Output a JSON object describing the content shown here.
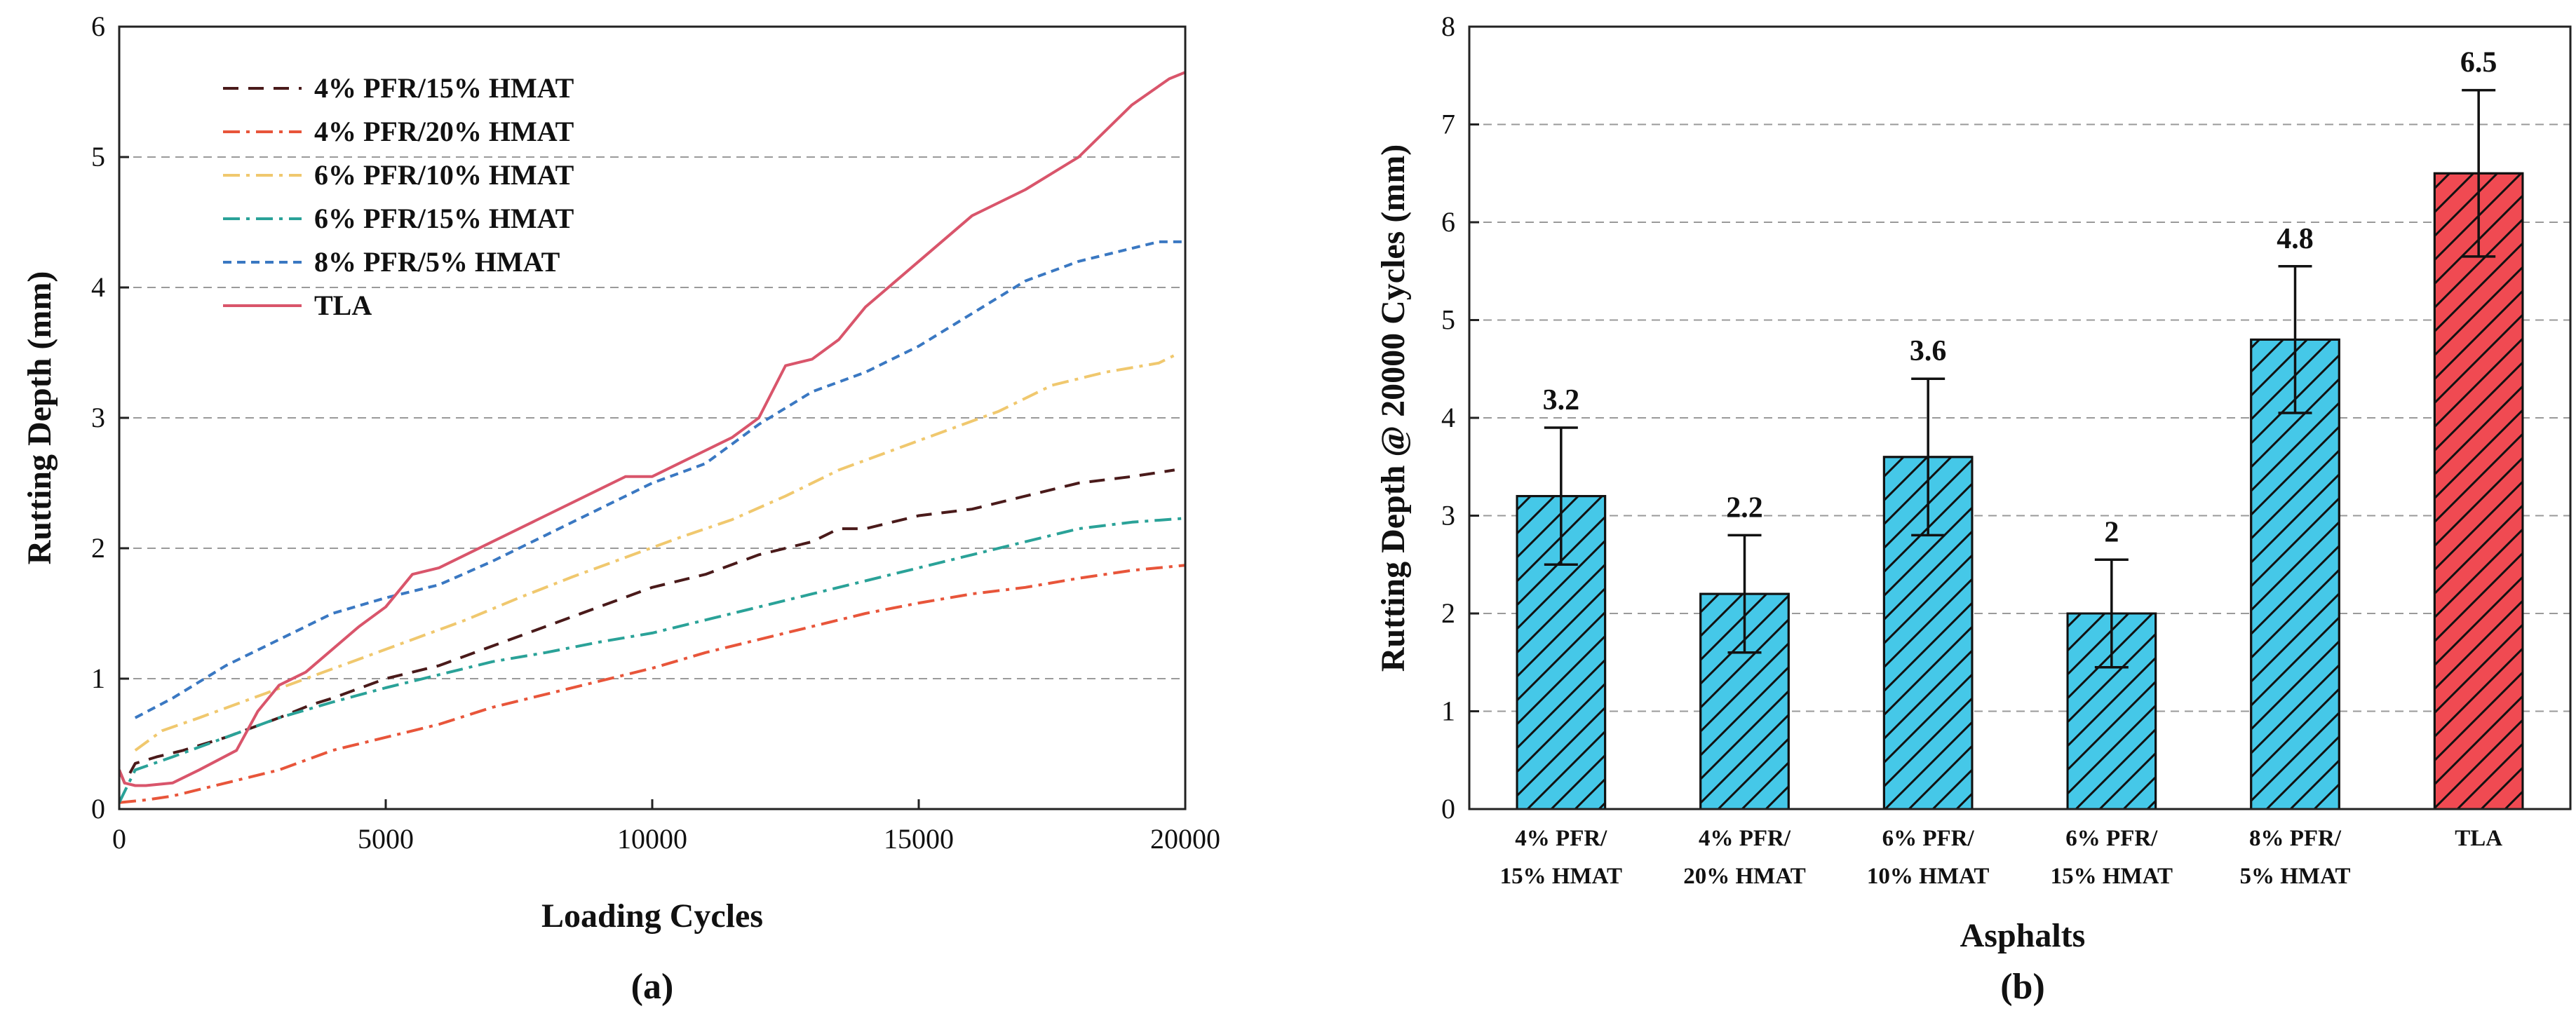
{
  "chart_data": [
    {
      "type": "line",
      "panel_label": "(a)",
      "xlabel": "Loading Cycles",
      "ylabel": "Rutting Depth (mm)",
      "xlim": [
        0,
        20000
      ],
      "ylim": [
        0,
        6
      ],
      "xticks": [
        0,
        5000,
        10000,
        15000,
        20000
      ],
      "yticks": [
        0,
        1,
        2,
        3,
        4,
        5,
        6
      ],
      "grid": "horizontal dashed",
      "legend_position": "top-left",
      "series": [
        {
          "name": "4% PFR/15% HMAT",
          "color": "#4a1a1a",
          "dash": "long",
          "x": [
            0,
            100,
            300,
            700,
            1200,
            2000,
            3000,
            3600,
            4000,
            5000,
            6000,
            7000,
            8000,
            9000,
            10000,
            11000,
            12000,
            13000,
            13500,
            14000,
            15000,
            16000,
            17000,
            18000,
            19000,
            19800
          ],
          "y": [
            0.3,
            0.2,
            0.35,
            0.4,
            0.45,
            0.55,
            0.7,
            0.8,
            0.85,
            1.0,
            1.1,
            1.25,
            1.4,
            1.55,
            1.7,
            1.8,
            1.95,
            2.05,
            2.15,
            2.15,
            2.25,
            2.3,
            2.4,
            2.5,
            2.55,
            2.6
          ]
        },
        {
          "name": "4% PFR/20% HMAT",
          "color": "#e8553a",
          "dash": "dashdot",
          "x": [
            0,
            500,
            1000,
            1500,
            2000,
            3000,
            4000,
            5000,
            6000,
            7000,
            8000,
            9000,
            10000,
            11000,
            12000,
            13000,
            14000,
            15000,
            16000,
            17000,
            18000,
            19000,
            20000
          ],
          "y": [
            0.05,
            0.07,
            0.1,
            0.15,
            0.2,
            0.3,
            0.45,
            0.55,
            0.65,
            0.78,
            0.88,
            0.98,
            1.08,
            1.2,
            1.3,
            1.4,
            1.5,
            1.58,
            1.65,
            1.7,
            1.77,
            1.83,
            1.87
          ]
        },
        {
          "name": "6% PFR/10% HMAT",
          "color": "#f0c86e",
          "dash": "dashdot",
          "x": [
            300,
            800,
            1500,
            2500,
            3500,
            4500,
            5500,
            6500,
            7500,
            8500,
            9500,
            10500,
            11500,
            12500,
            13500,
            14500,
            15500,
            16500,
            17500,
            18500,
            19500,
            19800
          ],
          "y": [
            0.45,
            0.6,
            0.7,
            0.85,
            1.0,
            1.15,
            1.3,
            1.45,
            1.62,
            1.78,
            1.93,
            2.08,
            2.22,
            2.4,
            2.6,
            2.75,
            2.9,
            3.05,
            3.25,
            3.35,
            3.42,
            3.48
          ]
        },
        {
          "name": "6% PFR/15% HMAT",
          "color": "#2aa298",
          "dash": "dashdot",
          "x": [
            0,
            300,
            1000,
            2000,
            3000,
            4000,
            5000,
            6000,
            7000,
            8000,
            9000,
            10000,
            11000,
            12000,
            13000,
            14000,
            15000,
            16000,
            17000,
            18000,
            19000,
            20000
          ],
          "y": [
            0.05,
            0.3,
            0.4,
            0.55,
            0.7,
            0.82,
            0.93,
            1.03,
            1.13,
            1.2,
            1.28,
            1.35,
            1.45,
            1.55,
            1.65,
            1.75,
            1.85,
            1.95,
            2.05,
            2.15,
            2.2,
            2.23
          ]
        },
        {
          "name": "8% PFR/5% HMAT",
          "color": "#3a78c2",
          "dash": "short",
          "x": [
            300,
            1000,
            2000,
            3000,
            4000,
            5000,
            6000,
            7000,
            8000,
            9000,
            10000,
            11000,
            12000,
            13000,
            14000,
            15000,
            16000,
            17000,
            18000,
            19000,
            19500,
            20000
          ],
          "y": [
            0.7,
            0.85,
            1.1,
            1.3,
            1.5,
            1.62,
            1.72,
            1.9,
            2.1,
            2.3,
            2.5,
            2.65,
            2.95,
            3.2,
            3.35,
            3.55,
            3.8,
            4.05,
            4.2,
            4.3,
            4.35,
            4.35
          ]
        },
        {
          "name": "TLA",
          "color": "#d9556b",
          "dash": "solid",
          "x": [
            0,
            100,
            300,
            500,
            1000,
            1500,
            2200,
            2600,
            3000,
            3500,
            4500,
            5000,
            5500,
            6000,
            7000,
            8000,
            9000,
            9500,
            10000,
            10500,
            11000,
            11500,
            12000,
            12500,
            13000,
            13500,
            14000,
            15000,
            16000,
            17000,
            18000,
            19000,
            19700,
            20000
          ],
          "y": [
            0.3,
            0.2,
            0.18,
            0.18,
            0.2,
            0.3,
            0.45,
            0.75,
            0.95,
            1.05,
            1.4,
            1.55,
            1.8,
            1.85,
            2.05,
            2.25,
            2.45,
            2.55,
            2.55,
            2.65,
            2.75,
            2.85,
            3.0,
            3.4,
            3.45,
            3.6,
            3.85,
            4.2,
            4.55,
            4.75,
            5.0,
            5.4,
            5.6,
            5.65
          ]
        }
      ]
    },
    {
      "type": "bar",
      "panel_label": "(b)",
      "xlabel": "Asphalts",
      "ylabel": "Rutting Depth @ 20000 Cycles (mm)",
      "ylim": [
        0,
        8
      ],
      "yticks": [
        0,
        1,
        2,
        3,
        4,
        5,
        6,
        7,
        8
      ],
      "grid": "horizontal dashed",
      "categories": [
        [
          "4% PFR/",
          "15% HMAT"
        ],
        [
          "4% PFR/",
          "20% HMAT"
        ],
        [
          "6% PFR/",
          "10% HMAT"
        ],
        [
          "6% PFR/",
          "15% HMAT"
        ],
        [
          "8% PFR/",
          "5% HMAT"
        ],
        [
          "TLA"
        ]
      ],
      "values": [
        3.2,
        2.2,
        3.6,
        2.0,
        4.8,
        6.5
      ],
      "value_labels": [
        "3.2",
        "2.2",
        "3.6",
        "2",
        "4.8",
        "6.5"
      ],
      "error": [
        0.7,
        0.6,
        0.8,
        0.55,
        0.75,
        0.85
      ],
      "colors": [
        "#45c8e8",
        "#45c8e8",
        "#45c8e8",
        "#45c8e8",
        "#45c8e8",
        "#f04a52"
      ],
      "hatch": "diagonal"
    }
  ]
}
